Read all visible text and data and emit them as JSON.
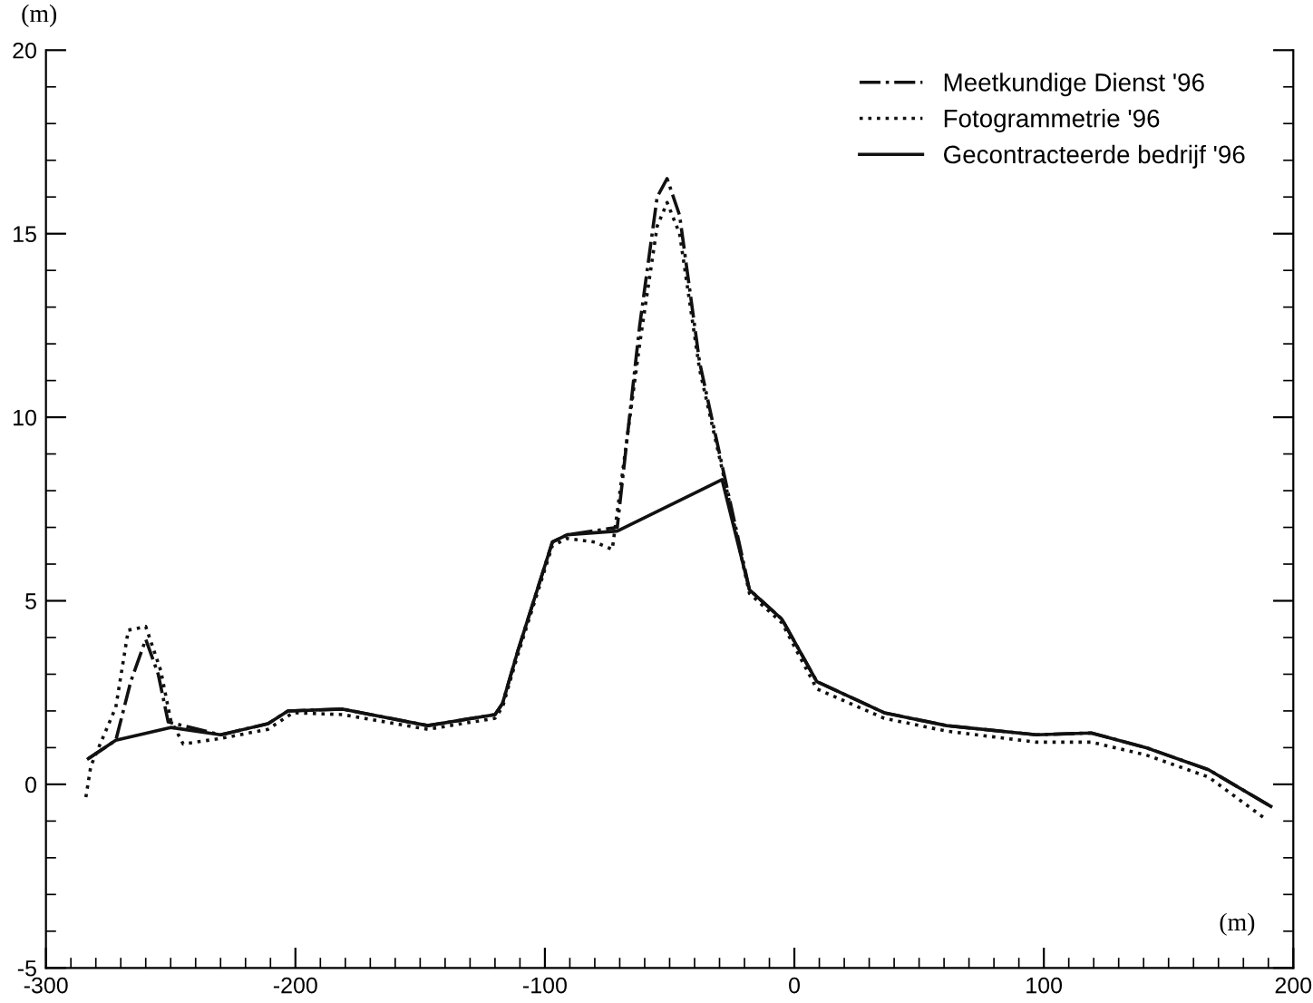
{
  "chart_data": {
    "type": "line",
    "xlabel": "(m)",
    "ylabel": "(m)",
    "xlim": [
      -300,
      200
    ],
    "xticks": [
      -300,
      -200,
      -100,
      0,
      100,
      200
    ],
    "ylim": [
      -5,
      20
    ],
    "yticks": [
      -5,
      0,
      5,
      10,
      15,
      20
    ],
    "grid": false,
    "legend": "top right",
    "marker": "none",
    "series": [
      {
        "name": "Meetkundige Dienst '96",
        "color": "#111111",
        "line_style": "dashdot",
        "x": [
          -283,
          -272,
          -266,
          -260,
          -255,
          -251,
          -230,
          -211,
          -203,
          -181,
          -147,
          -120,
          -117,
          -111,
          -97,
          -91,
          -71,
          -62,
          -55,
          -51,
          -46,
          -38,
          -29,
          -18,
          -5,
          9,
          36,
          61,
          97,
          119,
          141,
          166,
          191
        ],
        "values": [
          0.7,
          1.2,
          2.8,
          3.95,
          3.0,
          1.7,
          1.35,
          1.65,
          2.0,
          2.05,
          1.6,
          1.9,
          2.2,
          3.6,
          6.6,
          6.8,
          7.0,
          12.5,
          16.0,
          16.5,
          15.5,
          11.5,
          8.7,
          5.3,
          4.5,
          2.8,
          1.95,
          1.6,
          1.35,
          1.4,
          1.0,
          0.4,
          -0.6
        ]
      },
      {
        "name": "Fotogrammetrie '96",
        "color": "#111111",
        "line_style": "dotted",
        "x": [
          -284,
          -282,
          -272,
          -267,
          -260,
          -254,
          -250,
          -245,
          -230,
          -211,
          -201,
          -181,
          -147,
          -120,
          -117,
          -111,
          -97,
          -91,
          -80,
          -73,
          -62,
          -55,
          -51,
          -46,
          -38,
          -29,
          -18,
          -5,
          9,
          36,
          61,
          97,
          119,
          141,
          166,
          188
        ],
        "values": [
          -0.35,
          0.5,
          2.1,
          4.2,
          4.3,
          3.1,
          1.75,
          1.1,
          1.25,
          1.5,
          1.95,
          1.9,
          1.5,
          1.8,
          2.1,
          3.5,
          6.5,
          6.7,
          6.6,
          6.4,
          12.0,
          15.2,
          15.85,
          15.0,
          11.3,
          8.6,
          5.2,
          4.4,
          2.6,
          1.8,
          1.45,
          1.15,
          1.15,
          0.8,
          0.2,
          -0.9
        ]
      },
      {
        "name": "Gecontracteerde bedrijf '96",
        "color": "#111111",
        "line_style": "solid",
        "x": [
          -283,
          -272,
          -250,
          -230,
          -211,
          -203,
          -181,
          -147,
          -120,
          -117,
          -111,
          -97,
          -91,
          -71,
          -29,
          -18,
          -5,
          9,
          36,
          61,
          97,
          119,
          141,
          166,
          191
        ],
        "values": [
          0.7,
          1.2,
          1.55,
          1.35,
          1.65,
          2.0,
          2.05,
          1.6,
          1.9,
          2.2,
          3.6,
          6.6,
          6.8,
          6.9,
          8.3,
          5.3,
          4.5,
          2.8,
          1.95,
          1.6,
          1.35,
          1.4,
          1.0,
          0.4,
          -0.6
        ]
      }
    ]
  }
}
